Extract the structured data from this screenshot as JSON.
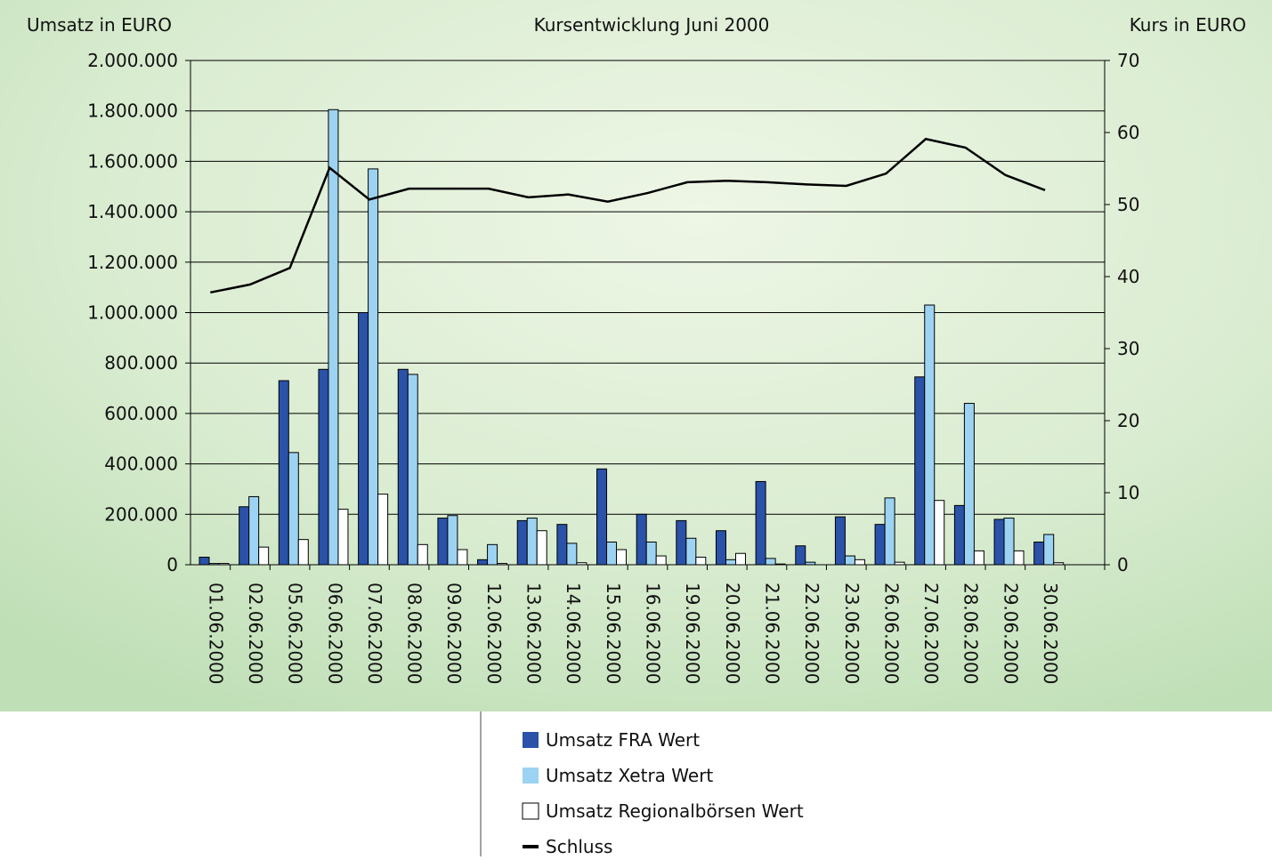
{
  "chart_data": {
    "type": "bar",
    "title": "Kursentwicklung Juni 2000",
    "y_label": "Umsatz in EURO",
    "y2_label": "Kurs in EURO",
    "categories": [
      "01.06.2000",
      "02.06.2000",
      "05.06.2000",
      "06.06.2000",
      "07.06.2000",
      "08.06.2000",
      "09.06.2000",
      "12.06.2000",
      "13.06.2000",
      "14.06.2000",
      "15.06.2000",
      "16.06.2000",
      "19.06.2000",
      "20.06.2000",
      "21.06.2000",
      "22.06.2000",
      "23.06.2000",
      "26.06.2000",
      "27.06.2000",
      "28.06.2000",
      "29.06.2000",
      "30.06.2000",
      null
    ],
    "series": [
      {
        "name": "Umsatz FRA Wert",
        "color": "#2a52a8",
        "values": [
          30000,
          230000,
          730000,
          775000,
          1000000,
          775000,
          185000,
          20000,
          175000,
          160000,
          380000,
          200000,
          175000,
          135000,
          330000,
          75000,
          190000,
          160000,
          745000,
          235000,
          180000,
          90000,
          null
        ]
      },
      {
        "name": "Umsatz Xetra Wert",
        "color": "#9dd3f2",
        "values": [
          5000,
          270000,
          445000,
          1805000,
          1570000,
          755000,
          195000,
          80000,
          185000,
          85000,
          90000,
          90000,
          105000,
          20000,
          25000,
          10000,
          35000,
          265000,
          1030000,
          640000,
          185000,
          120000,
          null
        ]
      },
      {
        "name": "Umsatz Regionalbörsen Wert",
        "color": "#ffffff",
        "values": [
          5000,
          70000,
          100000,
          220000,
          280000,
          80000,
          60000,
          5000,
          135000,
          8000,
          60000,
          35000,
          30000,
          45000,
          3000,
          0,
          20000,
          10000,
          255000,
          55000,
          55000,
          8000,
          null
        ]
      },
      {
        "name": "Schluss",
        "color": "#000000",
        "type": "line",
        "axis": "y2",
        "values": [
          37.8,
          38.9,
          41.2,
          55.1,
          50.7,
          52.2,
          52.2,
          52.2,
          51.0,
          51.4,
          50.4,
          51.6,
          53.1,
          53.3,
          53.1,
          52.8,
          52.6,
          54.3,
          59.1,
          57.9,
          54.1,
          52.0,
          null
        ]
      }
    ],
    "ylim": [
      0,
      2000000
    ],
    "yticks": [
      0,
      {
        "value": 200000,
        "label": "200.000"
      },
      {
        "value": 400000,
        "label": "400.000"
      },
      {
        "value": 600000,
        "label": "600.000"
      },
      {
        "value": 800000,
        "label": "800.000"
      },
      {
        "value": 1000000,
        "label": "1.000.000"
      },
      {
        "value": 1200000,
        "label": "1.200.000"
      },
      {
        "value": 1400000,
        "label": "1.400.000"
      },
      {
        "value": 1600000,
        "label": "1.600.000"
      },
      {
        "value": 1800000,
        "label": "1.800.000"
      },
      {
        "value": 2000000,
        "label": "2.000.000"
      }
    ],
    "y2lim": [
      0,
      70
    ],
    "y2ticks": [
      0,
      10,
      20,
      30,
      40,
      50,
      60,
      70
    ],
    "grid": true
  }
}
